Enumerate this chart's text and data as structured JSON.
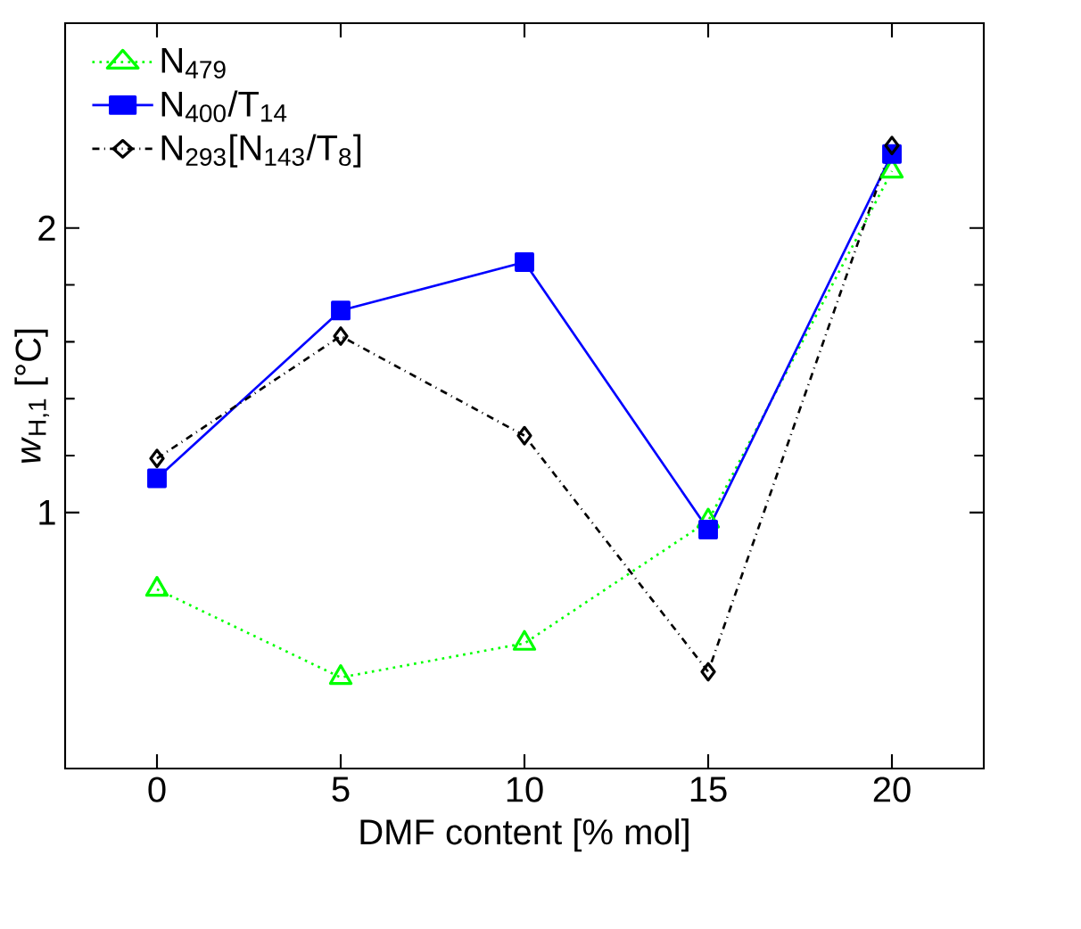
{
  "chart_data": {
    "type": "line",
    "xlabel": "DMF content [% mol]",
    "ylabel": "*w*$_{H,1}$ [°C]",
    "x": [
      0,
      5,
      10,
      15,
      20
    ],
    "xlim": [
      -2.5,
      22.5
    ],
    "xticks": [
      0,
      5,
      10,
      15,
      20
    ],
    "ylim": [
      0.1,
      2.72
    ],
    "yticks": [
      1,
      2
    ],
    "legend": "top left",
    "grid": false,
    "series": [
      {
        "name": "N$_{479}$",
        "color": "#00ff00",
        "marker": "triangle",
        "line_style": "dotted",
        "values": [
          0.73,
          0.42,
          0.54,
          0.97,
          2.2
        ]
      },
      {
        "name": "N$_{400}$/T$_{14}$",
        "color": "#0000ff",
        "marker": "square",
        "line_style": "solid",
        "values": [
          1.12,
          1.71,
          1.88,
          0.94,
          2.26
        ]
      },
      {
        "name": "N$_{293}$[N$_{143}$/T$_{8}$]",
        "color": "#000000",
        "marker": "diamond",
        "line_style": "dashdot",
        "values": [
          1.19,
          1.62,
          1.27,
          0.44,
          2.29
        ]
      }
    ]
  }
}
